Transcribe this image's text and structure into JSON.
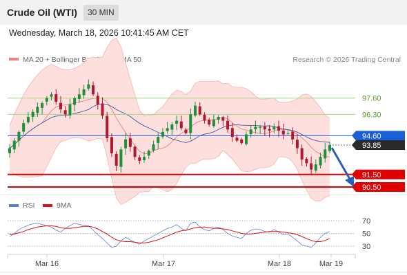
{
  "header": {
    "title": "Crude Oil (WTI)",
    "timeframe": "30 MIN"
  },
  "datetime": "Wednesday, March 18, 2026 10:41:45 AM CET",
  "legend": {
    "items": [
      {
        "label": "MA 20 + Bollinger Bands",
        "color": "#f08080"
      },
      {
        "label": "MA 50",
        "color": "#2c4f8c"
      }
    ],
    "copyright": "Research © 2026 Trading Central"
  },
  "rsi_legend": {
    "items": [
      {
        "label": "RSI",
        "color": "#5b7fd6"
      },
      {
        "label": "9MA",
        "color": "#e01010"
      }
    ]
  },
  "colors": {
    "bull": "#1e8f3a",
    "bear": "#b0182f",
    "band_fill": "#fde0de",
    "band_line": "#f3b3b3",
    "ma20": "#e88080",
    "ma50": "#3a5a9a",
    "support": "#e00000",
    "green_level": "#a6d48a",
    "current": "#1a5fd6",
    "arrow": "#2b5fb5"
  },
  "chart_data": [
    {
      "type": "candlestick",
      "x_ticks": [
        "Mar 16",
        "Mar 17",
        "Mar 18",
        "Mar 19"
      ],
      "levels": [
        {
          "label": "97.60",
          "value": 97.6,
          "kind": "resistance"
        },
        {
          "label": "96.30",
          "value": 96.3,
          "kind": "resistance"
        },
        {
          "label": "91.50",
          "value": 91.5,
          "kind": "support"
        },
        {
          "label": "90.50",
          "value": 90.5,
          "kind": "support"
        }
      ],
      "last_price": {
        "label": "93.85",
        "value": 93.85
      },
      "pivot": {
        "label": "94.60",
        "value": 94.6
      },
      "close_path": [
        93.6,
        94.2,
        94.9,
        95.6,
        96.1,
        96.5,
        96.9,
        97.2,
        97.6,
        97.9,
        97.3,
        96.7,
        96.3,
        97.1,
        97.6,
        97.9,
        98.3,
        98.7,
        97.9,
        97.1,
        96.2,
        94.4,
        93.2,
        92.2,
        93.5,
        94.3,
        93.7,
        92.9,
        92.6,
        92.9,
        93.4,
        93.9,
        94.5,
        94.9,
        95.2,
        95.5,
        95.8,
        95.2,
        94.8,
        96.3,
        97.0,
        96.3,
        95.8,
        95.5,
        95.9,
        96.1,
        95.8,
        95.1,
        94.5,
        94.2,
        94.0,
        94.7,
        95.1,
        95.3,
        95.3,
        95.1,
        95.0,
        95.3,
        95.0,
        94.7,
        94.8,
        94.3,
        93.6,
        92.7,
        92.4,
        91.9,
        92.3,
        92.9,
        93.5,
        93.85
      ],
      "y_range": [
        89.5,
        99.5
      ]
    },
    {
      "type": "line",
      "title": "",
      "y_ticks": [
        "70",
        "50",
        "30"
      ],
      "y_values": [
        70,
        50,
        30
      ],
      "series": [
        {
          "name": "RSI",
          "values": [
            45,
            50,
            56,
            60,
            63,
            65,
            66,
            64,
            62,
            60,
            55,
            52,
            58,
            62,
            66,
            64,
            63,
            62,
            55,
            48,
            42,
            35,
            28,
            30,
            38,
            44,
            40,
            36,
            33,
            38,
            42,
            46,
            50,
            54,
            58,
            60,
            64,
            58,
            54,
            66,
            68,
            60,
            56,
            54,
            58,
            60,
            56,
            50,
            46,
            44,
            42,
            50,
            55,
            57,
            56,
            53,
            52,
            56,
            52,
            48,
            49,
            44,
            38,
            32,
            30,
            28,
            35,
            44,
            50,
            53
          ]
        },
        {
          "name": "9MA",
          "values": [
            48,
            49,
            51,
            53,
            56,
            58,
            60,
            61,
            62,
            62,
            61,
            59,
            58,
            58,
            59,
            60,
            61,
            61,
            60,
            57,
            53,
            49,
            44,
            40,
            38,
            37,
            37,
            36,
            35,
            35,
            36,
            38,
            40,
            43,
            46,
            49,
            52,
            54,
            55,
            57,
            59,
            60,
            60,
            59,
            58,
            58,
            57,
            56,
            54,
            52,
            50,
            49,
            49,
            50,
            51,
            52,
            53,
            53,
            53,
            52,
            51,
            50,
            48,
            45,
            42,
            39,
            37,
            37,
            39,
            42
          ]
        }
      ]
    }
  ]
}
